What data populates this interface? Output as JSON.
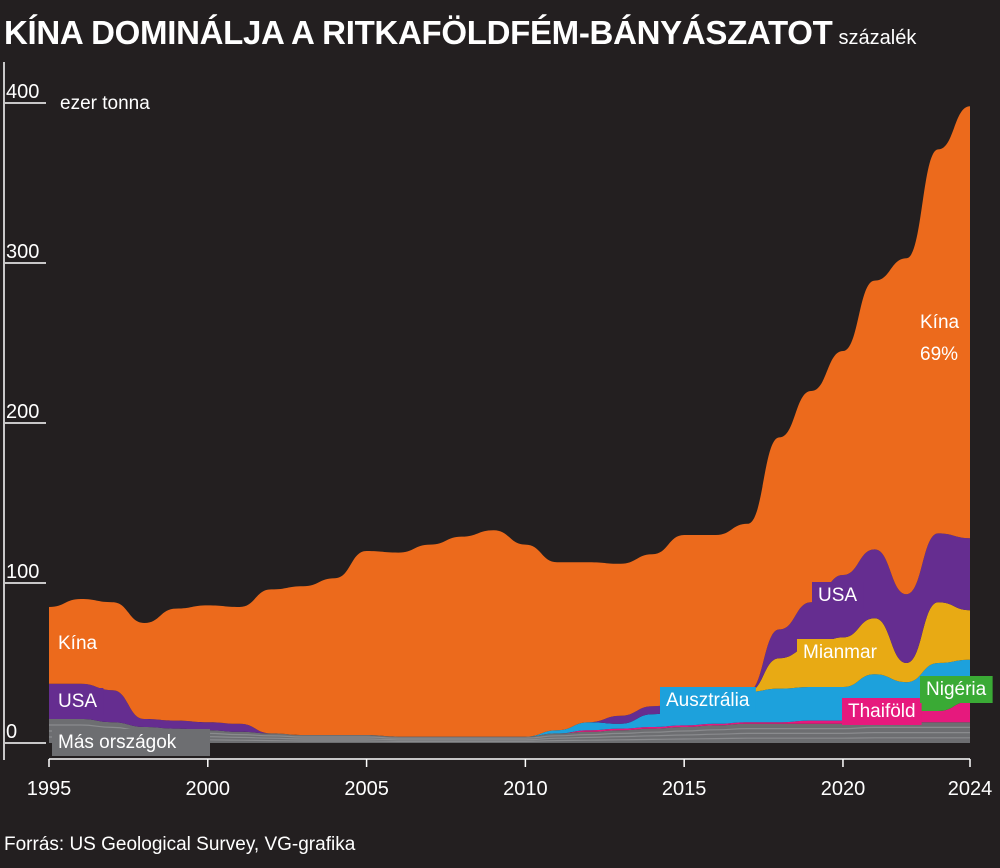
{
  "title": "KÍNA DOMINÁLJA A RITKAFÖLDFÉM-BÁNYÁSZATOT",
  "subtitle": "százalék",
  "source": "Forrás: US Geological Survey, VG-grafika",
  "chart_data": {
    "type": "area",
    "stacked": true,
    "unit_label": "ezer tonna",
    "ylim": [
      0,
      400
    ],
    "yticks": [
      400,
      300,
      200,
      100,
      0
    ],
    "xlim": [
      1995,
      2024
    ],
    "xticks": [
      1995,
      2000,
      2005,
      2010,
      2015,
      2020,
      2024
    ],
    "x": [
      1995,
      1996,
      1997,
      1998,
      1999,
      2000,
      2001,
      2002,
      2003,
      2004,
      2005,
      2006,
      2007,
      2008,
      2009,
      2010,
      2011,
      2012,
      2013,
      2014,
      2015,
      2016,
      2017,
      2018,
      2019,
      2020,
      2021,
      2022,
      2023,
      2024
    ],
    "series": [
      {
        "name": "Más országok",
        "color": "#6d6e71",
        "values": [
          15,
          15,
          13,
          10,
          9,
          8,
          7,
          6,
          5,
          5,
          5,
          4,
          4,
          4,
          4,
          4,
          6,
          7,
          8,
          9,
          10,
          11,
          12,
          12,
          12,
          12,
          13,
          13,
          13,
          13
        ]
      },
      {
        "name": "Thaiföld",
        "color": "#e6197d",
        "values": [
          0,
          0,
          0,
          0,
          0,
          0,
          0,
          0,
          0,
          0,
          0,
          0,
          0,
          0,
          0,
          0,
          0,
          1,
          1,
          1,
          1,
          1,
          1,
          1,
          2,
          2,
          8,
          7,
          7,
          13
        ]
      },
      {
        "name": "Nigéria",
        "color": "#3aaa35",
        "values": [
          0,
          0,
          0,
          0,
          0,
          0,
          0,
          0,
          0,
          0,
          0,
          0,
          0,
          0,
          0,
          0,
          0,
          0,
          0,
          0,
          0,
          0,
          0,
          0,
          0,
          0,
          0,
          0,
          13,
          13
        ]
      },
      {
        "name": "Ausztrália",
        "color": "#1da1dc",
        "values": [
          0,
          0,
          0,
          0,
          0,
          0,
          0,
          0,
          0,
          0,
          0,
          0,
          0,
          0,
          0,
          0,
          2,
          5,
          3,
          8,
          10,
          13,
          19,
          21,
          21,
          21,
          22,
          18,
          17,
          13
        ]
      },
      {
        "name": "Mianmar",
        "color": "#e8aa14",
        "values": [
          0,
          0,
          0,
          0,
          0,
          0,
          0,
          0,
          0,
          0,
          0,
          0,
          0,
          0,
          0,
          0,
          0,
          0,
          0,
          0,
          0,
          0,
          0,
          19,
          25,
          31,
          35,
          12,
          38,
          31
        ]
      },
      {
        "name": "USA",
        "color": "#652d90",
        "values": [
          22,
          22,
          20,
          5,
          5,
          5,
          5,
          0,
          0,
          0,
          0,
          0,
          0,
          0,
          0,
          0,
          0,
          0,
          5,
          5,
          4,
          0,
          0,
          18,
          28,
          39,
          43,
          43,
          43,
          45
        ]
      },
      {
        "name": "Kína",
        "color": "#ec6a1c",
        "values": [
          48,
          53,
          55,
          60,
          70,
          73,
          73,
          90,
          93,
          98,
          115,
          115,
          120,
          125,
          129,
          120,
          105,
          100,
          95,
          95,
          105,
          105,
          105,
          120,
          132,
          140,
          168,
          210,
          240,
          270
        ]
      }
    ],
    "labels": [
      {
        "text": "Kína",
        "series": "Kína"
      },
      {
        "text": "69%",
        "series": "Kína"
      },
      {
        "text": "Kína",
        "series": "Kína"
      },
      {
        "text": "USA",
        "series": "USA"
      },
      {
        "text": "USA",
        "series": "USA"
      },
      {
        "text": "Más országok",
        "series": "Más országok"
      },
      {
        "text": "Ausztrália",
        "series": "Ausztrália"
      },
      {
        "text": "Mianmar",
        "series": "Mianmar"
      },
      {
        "text": "Thaiföld",
        "series": "Thaiföld"
      },
      {
        "text": "Nigéria",
        "series": "Nigéria"
      }
    ]
  }
}
